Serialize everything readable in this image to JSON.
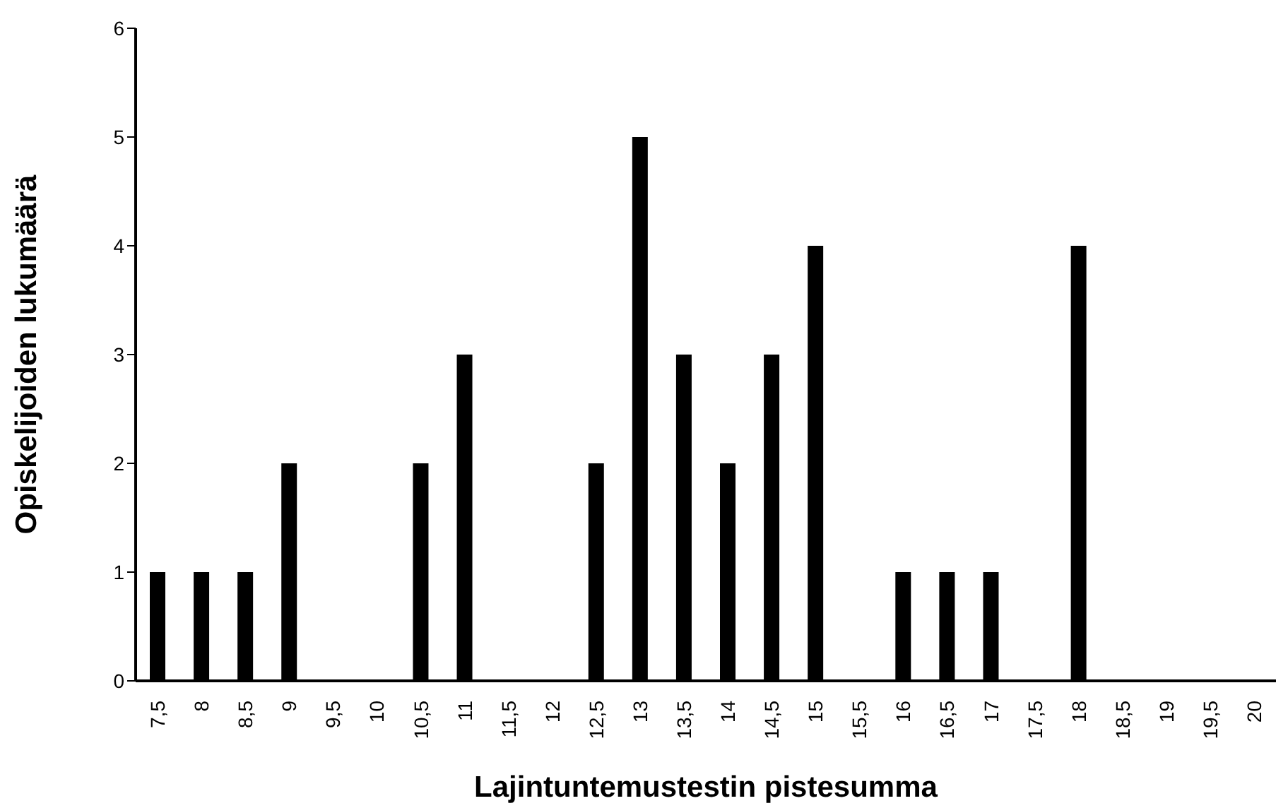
{
  "chart_data": {
    "type": "bar",
    "xlabel": "Lajintuntemustestin pistesumma",
    "ylabel": "Opiskelijoiden lukumäärä",
    "categories": [
      "7,5",
      "8",
      "8,5",
      "9",
      "9,5",
      "10",
      "10,5",
      "11",
      "11,5",
      "12",
      "12,5",
      "13",
      "13,5",
      "14",
      "14,5",
      "15",
      "15,5",
      "16",
      "16,5",
      "17",
      "17,5",
      "18",
      "18,5",
      "19",
      "19,5",
      "20"
    ],
    "values": [
      1,
      1,
      1,
      2,
      0,
      0,
      2,
      3,
      0,
      0,
      2,
      5,
      3,
      2,
      3,
      4,
      0,
      1,
      1,
      1,
      0,
      4,
      0,
      0,
      0,
      0
    ],
    "color": "#000000",
    "ylim": [
      0,
      6
    ],
    "yticks": [
      0,
      1,
      2,
      3,
      4,
      5,
      6
    ],
    "grid": false,
    "legend": false
  }
}
